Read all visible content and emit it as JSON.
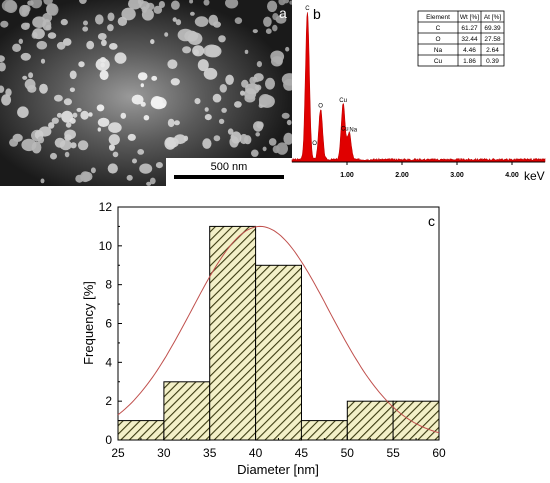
{
  "panels": {
    "a": {
      "letter": "a",
      "scalebar_label": "500 nm"
    },
    "b": {
      "letter": "b",
      "peak_labels": [
        "C",
        "O",
        "Cu",
        "O",
        "Cu",
        "Na"
      ],
      "x_ticks": [
        "1.00",
        "2.00",
        "3.00",
        "4.00"
      ],
      "x_unit": "keV",
      "table": {
        "headers": [
          "Element",
          "Wt [%]",
          "At [%]"
        ],
        "rows": [
          [
            "C",
            "61.27",
            "69.39"
          ],
          [
            "O",
            "32.44",
            "27.58"
          ],
          [
            "Na",
            "4.46",
            "2.64"
          ],
          [
            "Cu",
            "1.86",
            "0.39"
          ]
        ]
      }
    },
    "c": {
      "letter": "c"
    }
  },
  "chart_data": [
    {
      "type": "bar",
      "panel": "b",
      "description_type": "spectrum",
      "x_ticks": [
        1.0,
        2.0,
        3.0,
        4.0
      ],
      "xlim": [
        0.0,
        4.6
      ],
      "xlabel": "keV",
      "peaks": [
        {
          "label": "C",
          "energy": 0.28,
          "relative_height": 1.0
        },
        {
          "label": "O",
          "energy": 0.52,
          "relative_height": 0.34
        },
        {
          "label": "Cu",
          "energy": 0.93,
          "relative_height": 0.38
        },
        {
          "label": "Na",
          "energy": 1.04,
          "relative_height": 0.18
        }
      ],
      "legend_table_position": "top-right"
    },
    {
      "type": "bar",
      "panel": "c",
      "histogram": true,
      "bin_edges": [
        25,
        30,
        35,
        40,
        45,
        50,
        55,
        60
      ],
      "values": [
        1,
        3,
        11,
        9,
        1,
        2,
        2
      ],
      "fit_curve": {
        "type": "gaussian",
        "mean": 40.5,
        "sigma": 7.5,
        "peak": 11
      },
      "xlabel": "Diameter [nm]",
      "ylabel": "Frequency [%]",
      "xlim": [
        25,
        60
      ],
      "ylim": [
        0,
        12
      ],
      "x_ticks": [
        25,
        30,
        35,
        40,
        45,
        50,
        55,
        60
      ],
      "y_ticks": [
        0,
        2,
        4,
        6,
        8,
        10,
        12
      ],
      "colors": {
        "bar_fill": "#f3f0c8",
        "hatch": "#3a3a10",
        "fit": "#c0504d"
      }
    }
  ]
}
